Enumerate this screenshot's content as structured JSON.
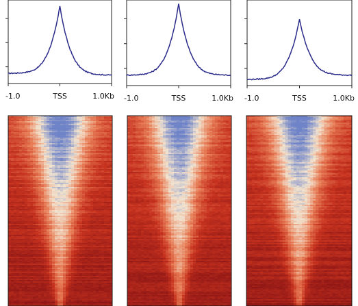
{
  "chart_data": [
    {
      "type": "line",
      "x_tick_labels": [
        "-1.0",
        "TSS",
        "1.0Kb"
      ],
      "xlim": [
        -1.0,
        1.0
      ],
      "ylim": [
        0.0,
        1.0
      ],
      "y_tick_count": 3,
      "peak": 0.93,
      "baseline_left": 0.12,
      "baseline_right": 0.1,
      "line_color": "#2a2a8a"
    },
    {
      "type": "line",
      "x_tick_labels": [
        "-1.0",
        "TSS",
        "1.0Kb"
      ],
      "xlim": [
        -1.0,
        1.0
      ],
      "ylim": [
        0.0,
        1.0
      ],
      "y_tick_count": 3,
      "peak": 0.96,
      "baseline_left": 0.12,
      "baseline_right": 0.12,
      "line_color": "#2a2a8a"
    },
    {
      "type": "line",
      "x_tick_labels": [
        "-1.0",
        "TSS",
        "1.0Kb"
      ],
      "xlim": [
        -1.0,
        1.0
      ],
      "ylim": [
        0.0,
        1.0
      ],
      "y_tick_count": 3,
      "peak": 0.78,
      "baseline_left": 0.07,
      "baseline_right": 0.12,
      "line_color": "#2a2a8a"
    },
    {
      "type": "heatmap",
      "colormap": [
        "#6f84c8",
        "#f2e3cf",
        "#e8805a",
        "#c7331f",
        "#8c1515"
      ],
      "low_color": "#6f84c8",
      "high_color": "#a41c1c"
    },
    {
      "type": "heatmap",
      "colormap": [
        "#6f84c8",
        "#f2e3cf",
        "#e8805a",
        "#c7331f",
        "#8c1515"
      ],
      "low_color": "#6f84c8",
      "high_color": "#a41c1c"
    },
    {
      "type": "heatmap",
      "colormap": [
        "#6f84c8",
        "#f2e3cf",
        "#e8805a",
        "#c7331f",
        "#8c1515"
      ],
      "low_color": "#6f84c8",
      "high_color": "#a41c1c"
    }
  ]
}
